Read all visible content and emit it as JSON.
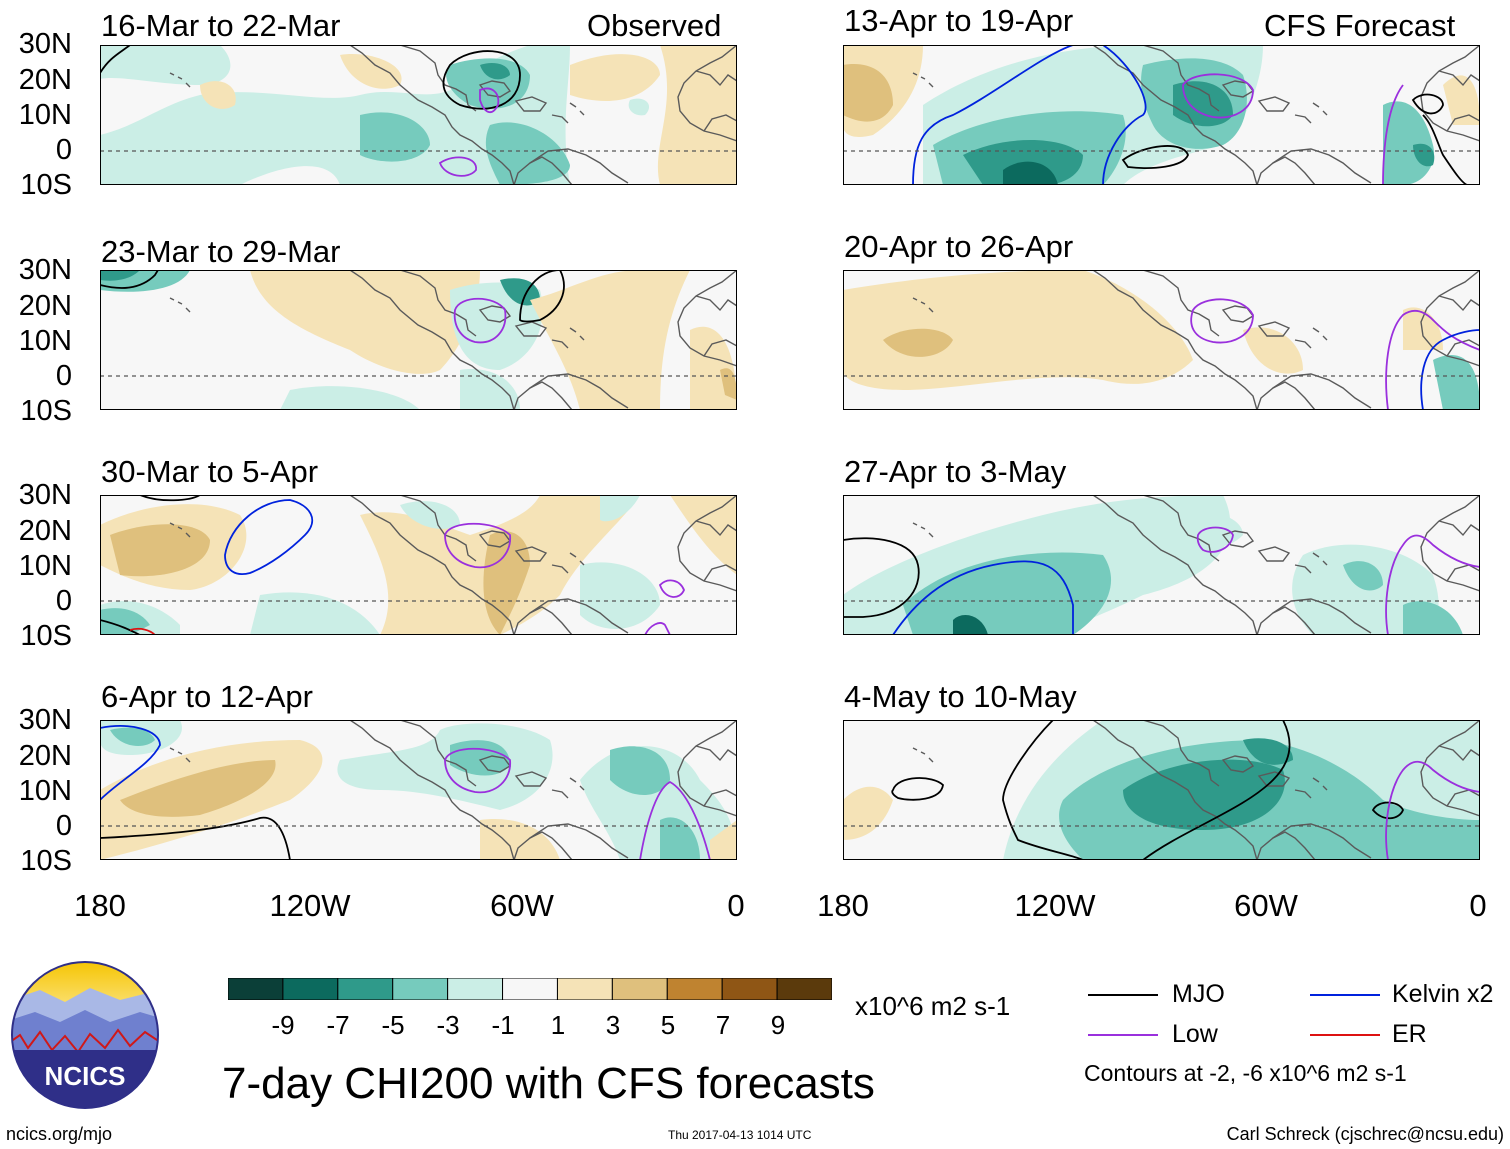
{
  "headers": {
    "observed": "Observed",
    "forecast": "CFS Forecast"
  },
  "panels": [
    {
      "title": "16-Mar to 22-Mar"
    },
    {
      "title": "23-Mar to 29-Mar"
    },
    {
      "title": "30-Mar to 5-Apr"
    },
    {
      "title": "6-Apr to 12-Apr"
    },
    {
      "title": "13-Apr to 19-Apr"
    },
    {
      "title": "20-Apr to 26-Apr"
    },
    {
      "title": "27-Apr to 3-May"
    },
    {
      "title": "4-May to 10-May"
    }
  ],
  "lat_labels": [
    "30N",
    "20N",
    "10N",
    "0",
    "10S"
  ],
  "lon_labels": [
    "180",
    "120W",
    "60W",
    "0"
  ],
  "colorbar": {
    "unit": "x10^6 m2 s-1",
    "tick_labels": [
      "-9",
      "-7",
      "-5",
      "-3",
      "-1",
      "1",
      "3",
      "5",
      "7",
      "9"
    ],
    "colors": [
      "#0b3f38",
      "#0c6a5e",
      "#2f9a8a",
      "#76cbbd",
      "#cbeee6",
      "#f7f7f7",
      "#f5e3b7",
      "#dfc07d",
      "#bf8330",
      "#8f5615",
      "#5b3a0c"
    ]
  },
  "legend": {
    "mjo": "MJO",
    "kelvin": "Kelvin x2",
    "low": "Low",
    "er": "ER",
    "contours_note": "Contours at -2, -6 x10^6 m2 s-1",
    "colors": {
      "mjo": "#000000",
      "kelvin": "#0022dd",
      "low": "#9a30dd",
      "er": "#dd1111"
    }
  },
  "main_title": "7-day CHI200 with CFS forecasts",
  "logo_text": "NCICS",
  "footer": {
    "url": "ncics.org/mjo",
    "timestamp": "Thu 2017-04-13 1014 UTC",
    "credit": "Carl Schreck (cjschrec@ncsu.edu)"
  }
}
